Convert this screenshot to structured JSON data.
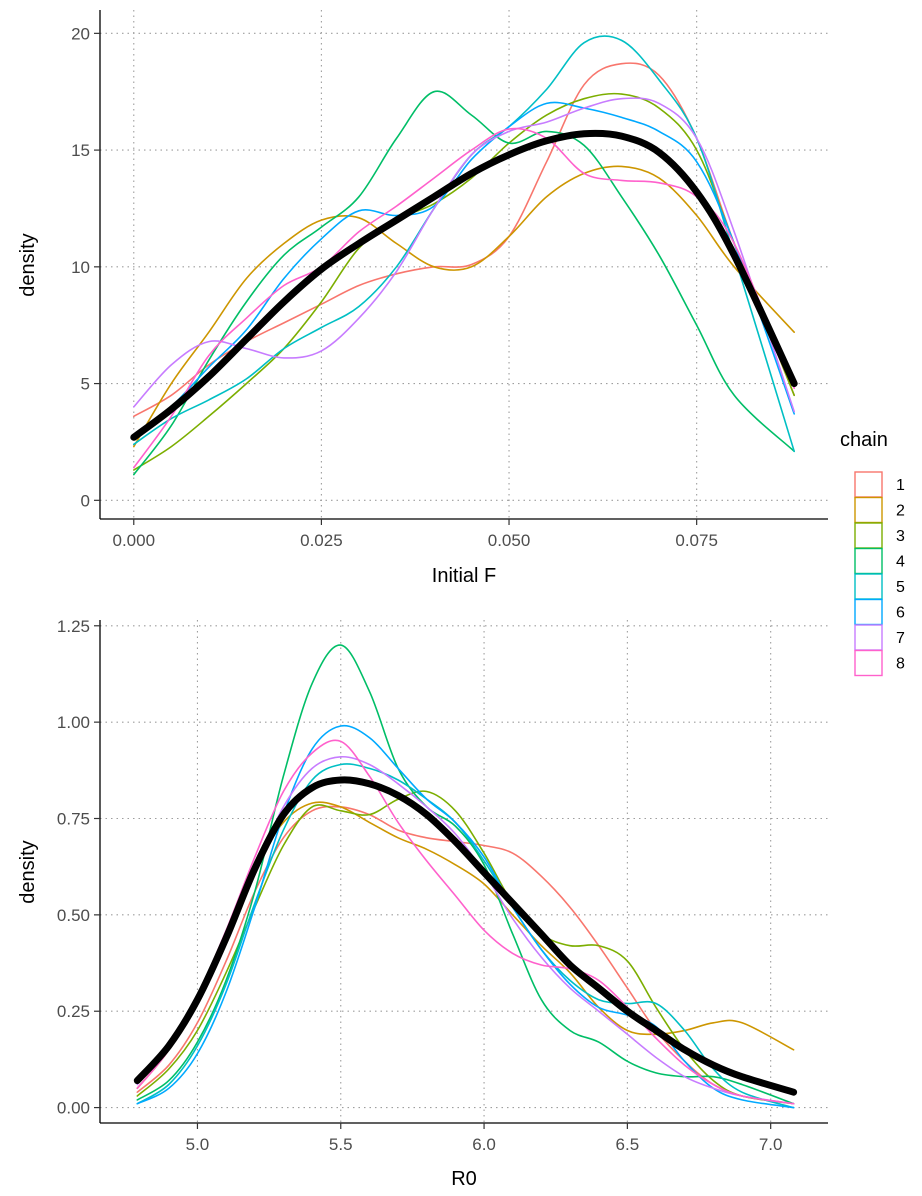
{
  "legend": {
    "title": "chain",
    "entries": [
      {
        "label": "1",
        "color": "#F8766D"
      },
      {
        "label": "2",
        "color": "#CD9600"
      },
      {
        "label": "3",
        "color": "#7CAE00"
      },
      {
        "label": "4",
        "color": "#00BE67"
      },
      {
        "label": "5",
        "color": "#00BFC4"
      },
      {
        "label": "6",
        "color": "#00A9FF"
      },
      {
        "label": "7",
        "color": "#C77CFF"
      },
      {
        "label": "8",
        "color": "#FF61CC"
      }
    ]
  },
  "chart_data": [
    {
      "type": "line",
      "xlabel": "Initial F",
      "ylabel": "density",
      "xlim": [
        -0.0045,
        0.0925
      ],
      "ylim": [
        -0.8,
        21.0
      ],
      "xticks": [
        0.0,
        0.025,
        0.05,
        0.075
      ],
      "xtick_labels": [
        "0.000",
        "0.025",
        "0.050",
        "0.075"
      ],
      "yticks": [
        0,
        5,
        10,
        15,
        20
      ],
      "ytick_labels": [
        "0",
        "5",
        "10",
        "15",
        "20"
      ],
      "grid": true,
      "x": [
        0.0,
        0.005,
        0.01,
        0.015,
        0.02,
        0.025,
        0.03,
        0.035,
        0.04,
        0.045,
        0.05,
        0.055,
        0.06,
        0.065,
        0.07,
        0.075,
        0.08,
        0.088
      ],
      "series": [
        {
          "name": "1",
          "values": [
            3.6,
            4.5,
            5.8,
            6.8,
            7.6,
            8.4,
            9.2,
            9.7,
            10.0,
            10.1,
            11.3,
            14.5,
            17.8,
            18.7,
            18.2,
            15.5,
            11.0,
            4.5
          ]
        },
        {
          "name": "2",
          "values": [
            2.3,
            5.0,
            7.2,
            9.5,
            11.0,
            12.0,
            12.1,
            11.0,
            10.0,
            10.0,
            11.3,
            13.0,
            14.0,
            14.3,
            13.8,
            12.2,
            10.0,
            7.2
          ]
        },
        {
          "name": "3",
          "values": [
            1.3,
            2.3,
            3.6,
            5.0,
            6.5,
            8.5,
            10.8,
            12.0,
            12.7,
            13.8,
            15.3,
            16.5,
            17.2,
            17.4,
            16.8,
            15.0,
            11.0,
            4.5
          ]
        },
        {
          "name": "4",
          "values": [
            1.1,
            3.2,
            6.0,
            8.5,
            10.5,
            11.7,
            13.0,
            15.5,
            17.5,
            16.5,
            15.3,
            15.8,
            15.2,
            13.0,
            10.5,
            7.5,
            4.5,
            2.1
          ]
        },
        {
          "name": "5",
          "values": [
            2.4,
            3.5,
            4.3,
            5.2,
            6.5,
            7.4,
            8.3,
            10.0,
            12.5,
            14.8,
            16.0,
            17.6,
            19.6,
            19.7,
            18.0,
            15.5,
            10.5,
            2.1
          ]
        },
        {
          "name": "6",
          "values": [
            2.6,
            4.0,
            5.7,
            7.3,
            9.5,
            11.2,
            12.4,
            12.2,
            12.6,
            14.6,
            16.0,
            17.0,
            16.8,
            16.4,
            15.8,
            14.5,
            11.0,
            3.7
          ]
        },
        {
          "name": "7",
          "values": [
            4.0,
            5.8,
            6.8,
            6.5,
            6.1,
            6.4,
            7.8,
            9.8,
            12.5,
            14.8,
            15.8,
            16.2,
            16.8,
            17.2,
            17.0,
            15.5,
            11.5,
            3.8
          ]
        },
        {
          "name": "8",
          "values": [
            1.4,
            3.6,
            6.2,
            7.8,
            9.2,
            10.0,
            11.5,
            12.6,
            13.8,
            15.0,
            15.9,
            15.5,
            14.0,
            13.7,
            13.6,
            13.0,
            11.0,
            4.8
          ]
        },
        {
          "name": "",
          "values": [
            2.7,
            3.9,
            5.3,
            6.9,
            8.5,
            9.9,
            11.0,
            12.0,
            13.0,
            14.0,
            14.8,
            15.4,
            15.7,
            15.6,
            14.9,
            13.2,
            10.5,
            5.0
          ]
        }
      ]
    },
    {
      "type": "line",
      "xlabel": "R0",
      "ylabel": "density",
      "xlim": [
        4.66,
        7.2
      ],
      "ylim": [
        -0.04,
        1.265
      ],
      "xticks": [
        5.0,
        5.5,
        6.0,
        6.5,
        7.0
      ],
      "xtick_labels": [
        "5.0",
        "5.5",
        "6.0",
        "6.5",
        "7.0"
      ],
      "yticks": [
        0.0,
        0.25,
        0.5,
        0.75,
        1.0,
        1.25
      ],
      "ytick_labels": [
        "0.00",
        "0.25",
        "0.50",
        "0.75",
        "1.00",
        "1.25"
      ],
      "grid": true,
      "x": [
        4.79,
        4.9,
        5.0,
        5.1,
        5.2,
        5.3,
        5.4,
        5.5,
        5.6,
        5.7,
        5.8,
        5.9,
        6.0,
        6.1,
        6.2,
        6.3,
        6.4,
        6.5,
        6.6,
        6.7,
        6.8,
        6.9,
        7.08
      ],
      "series": [
        {
          "name": "1",
          "values": [
            0.04,
            0.11,
            0.22,
            0.38,
            0.56,
            0.7,
            0.77,
            0.78,
            0.76,
            0.72,
            0.7,
            0.69,
            0.68,
            0.66,
            0.6,
            0.52,
            0.42,
            0.31,
            0.2,
            0.12,
            0.06,
            0.03,
            0.01
          ]
        },
        {
          "name": "2",
          "values": [
            0.05,
            0.15,
            0.29,
            0.45,
            0.62,
            0.74,
            0.79,
            0.78,
            0.74,
            0.7,
            0.67,
            0.63,
            0.58,
            0.5,
            0.42,
            0.35,
            0.26,
            0.2,
            0.19,
            0.2,
            0.22,
            0.22,
            0.15
          ]
        },
        {
          "name": "3",
          "values": [
            0.03,
            0.1,
            0.2,
            0.35,
            0.52,
            0.68,
            0.78,
            0.77,
            0.76,
            0.8,
            0.82,
            0.77,
            0.66,
            0.53,
            0.45,
            0.42,
            0.42,
            0.38,
            0.26,
            0.15,
            0.07,
            0.03,
            0.01
          ]
        },
        {
          "name": "4",
          "values": [
            0.02,
            0.07,
            0.17,
            0.33,
            0.56,
            0.86,
            1.1,
            1.2,
            1.08,
            0.88,
            0.78,
            0.73,
            0.63,
            0.45,
            0.28,
            0.2,
            0.17,
            0.12,
            0.09,
            0.08,
            0.08,
            0.06,
            0.01
          ]
        },
        {
          "name": "5",
          "values": [
            0.01,
            0.06,
            0.16,
            0.32,
            0.53,
            0.72,
            0.85,
            0.89,
            0.88,
            0.85,
            0.8,
            0.74,
            0.64,
            0.52,
            0.41,
            0.33,
            0.28,
            0.27,
            0.27,
            0.2,
            0.1,
            0.04,
            0.0
          ]
        },
        {
          "name": "6",
          "values": [
            0.01,
            0.05,
            0.14,
            0.3,
            0.52,
            0.76,
            0.93,
            0.99,
            0.96,
            0.88,
            0.8,
            0.74,
            0.65,
            0.52,
            0.41,
            0.32,
            0.26,
            0.24,
            0.21,
            0.12,
            0.05,
            0.02,
            0.0
          ]
        },
        {
          "name": "7",
          "values": [
            0.06,
            0.16,
            0.29,
            0.45,
            0.62,
            0.78,
            0.88,
            0.91,
            0.89,
            0.84,
            0.78,
            0.71,
            0.61,
            0.49,
            0.39,
            0.31,
            0.25,
            0.19,
            0.13,
            0.08,
            0.05,
            0.03,
            0.01
          ]
        },
        {
          "name": "8",
          "values": [
            0.05,
            0.15,
            0.29,
            0.46,
            0.65,
            0.82,
            0.92,
            0.95,
            0.86,
            0.74,
            0.64,
            0.55,
            0.46,
            0.4,
            0.37,
            0.36,
            0.33,
            0.26,
            0.18,
            0.11,
            0.06,
            0.03,
            0.01
          ]
        },
        {
          "name": "",
          "values": [
            0.07,
            0.16,
            0.28,
            0.44,
            0.62,
            0.76,
            0.83,
            0.85,
            0.84,
            0.81,
            0.76,
            0.69,
            0.61,
            0.53,
            0.45,
            0.37,
            0.31,
            0.25,
            0.2,
            0.15,
            0.11,
            0.08,
            0.04
          ]
        }
      ]
    }
  ]
}
